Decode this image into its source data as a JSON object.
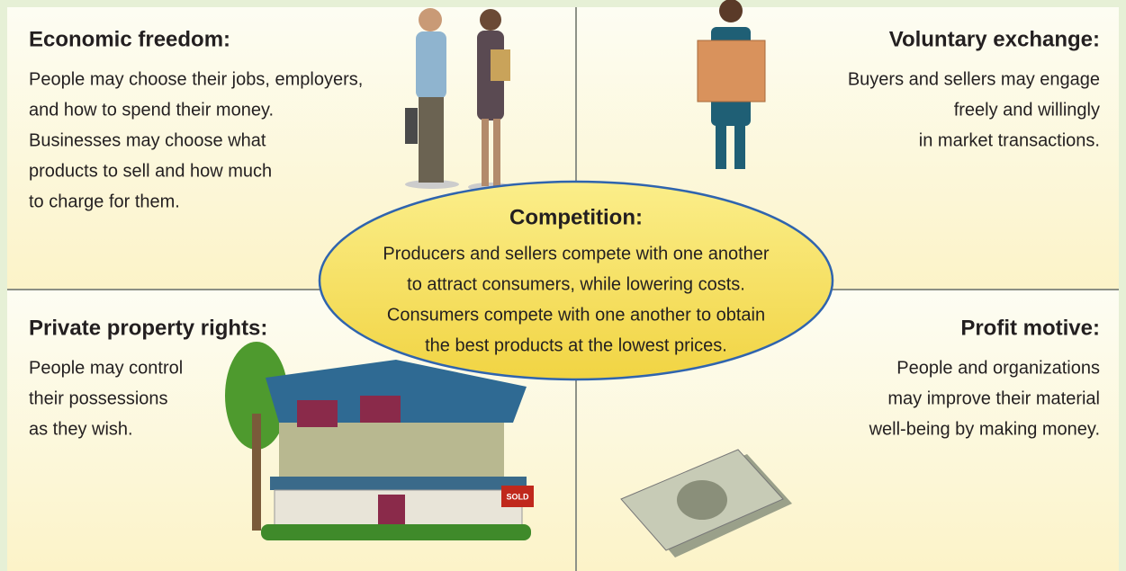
{
  "quadrants": [
    {
      "title": "Economic freedom:",
      "lines": [
        "People may choose their jobs, employers,",
        "and how to spend their money.",
        "Businesses may choose what",
        "products to sell and how much",
        "to charge for them."
      ]
    },
    {
      "title": "Voluntary exchange:",
      "lines": [
        "Buyers and sellers may engage",
        "freely and willingly",
        "in market transactions."
      ]
    },
    {
      "title": "Private property rights:",
      "lines": [
        "People may control",
        "their possessions",
        "as they wish."
      ]
    },
    {
      "title": "Profit motive:",
      "lines": [
        "People and organizations",
        "may improve their material",
        "well-being by making money."
      ]
    }
  ],
  "center": {
    "title": "Competition:",
    "lines": [
      "Producers and sellers compete with one another",
      "to attract consumers, while lowering costs.",
      "Consumers compete with one another to obtain",
      "the best products at the lowest prices."
    ]
  },
  "sign": "SOLD"
}
